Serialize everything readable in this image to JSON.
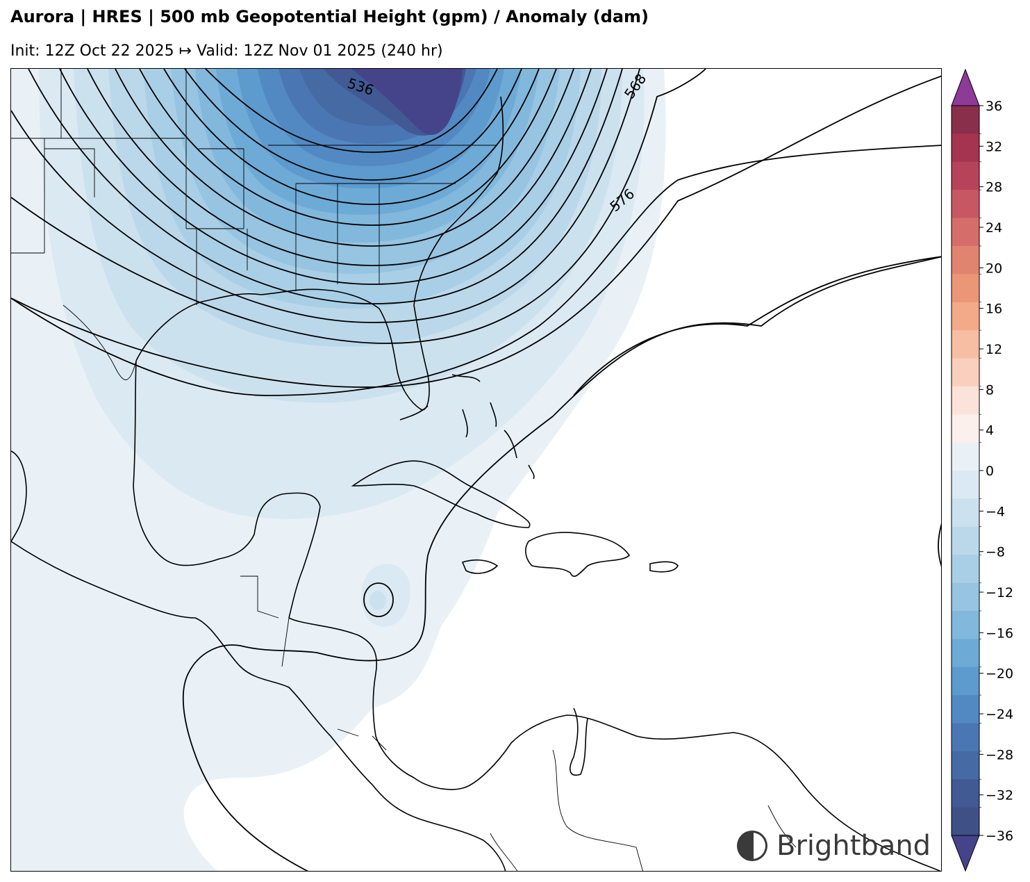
{
  "header": {
    "title": "Aurora | HRES | 500 mb Geopotential Height (gpm) / Anomaly (dam)",
    "subtitle": "Init: 12Z Oct 22 2025 ↦ Valid: 12Z Nov 01 2025 (240 hr)"
  },
  "map": {
    "region": "Gulf of Mexico / Caribbean",
    "contour_labels": [
      "536",
      "568",
      "576"
    ]
  },
  "colorbar": {
    "ticks": [
      "36",
      "32",
      "28",
      "24",
      "20",
      "16",
      "12",
      "8",
      "4",
      "0",
      "−4",
      "−8",
      "−12",
      "−16",
      "−20",
      "−24",
      "−28",
      "−32",
      "−36"
    ],
    "colors": {
      "positive_levels": [
        "#fbf0ec",
        "#fbe3d9",
        "#f9d0bd",
        "#f6bea2",
        "#f2aa89",
        "#ea9677",
        "#e08470",
        "#d56e6a",
        "#c75863",
        "#b7435a",
        "#a43450",
        "#892f4b"
      ],
      "negative_levels": [
        "#e9f1f7",
        "#dbe9f2",
        "#cce1ee",
        "#bbd8ea",
        "#a9cfe6",
        "#96c4e1",
        "#82b8dc",
        "#6eaad6",
        "#5d9acd",
        "#5289c2",
        "#4a77b3",
        "#456aa4",
        "#415a94",
        "#3e5086"
      ],
      "extend_max": "#8e3a98",
      "extend_min": "#45438a"
    }
  },
  "branding": {
    "logo_text": "Brightband"
  }
}
